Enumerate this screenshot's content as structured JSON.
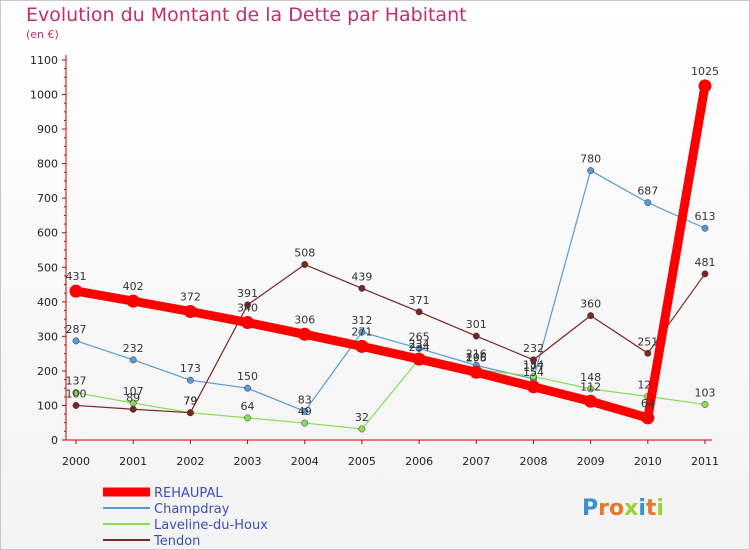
{
  "title": "Evolution du Montant de la Dette par Habitant",
  "subtitle": "(en €)",
  "brand": "Proxiti",
  "chart_data": {
    "type": "line",
    "x": [
      "2000",
      "2001",
      "2002",
      "2003",
      "2004",
      "2005",
      "2006",
      "2007",
      "2008",
      "2009",
      "2010",
      "2011"
    ],
    "ylim": [
      0,
      1100
    ],
    "yticks": [
      0,
      100,
      200,
      300,
      400,
      500,
      600,
      700,
      800,
      900,
      1000,
      1100
    ],
    "grid": false,
    "legend_placement": "bottom-left",
    "series": [
      {
        "name": "REHAUPAL",
        "color": "#ff0000",
        "values": [
          431,
          402,
          372,
          340,
          306,
          271,
          234,
          196,
          154,
          112,
          64,
          1025
        ]
      },
      {
        "name": "Champdray",
        "color": "#5a9ad4",
        "values": [
          287,
          232,
          173,
          150,
          83,
          312,
          265,
          216,
          177,
          780,
          687,
          613
        ]
      },
      {
        "name": "Laveline-du-Houx",
        "color": "#88dd55",
        "values": [
          137,
          107,
          79,
          64,
          49,
          32,
          234,
          205,
          184,
          148,
          126,
          103
        ]
      },
      {
        "name": "Tendon",
        "color": "#7a2525",
        "values": [
          100,
          89,
          79,
          391,
          508,
          439,
          371,
          301,
          232,
          360,
          251,
          481
        ]
      }
    ]
  }
}
